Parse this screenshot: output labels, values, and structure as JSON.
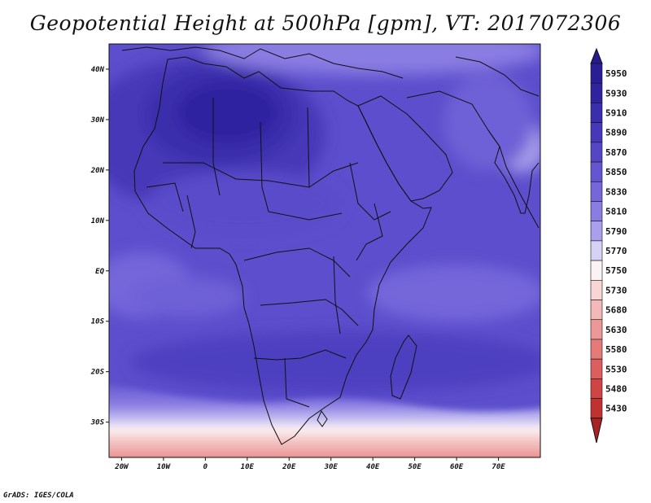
{
  "title": "Geopotential Height at 500hPa [gpm], VT: 2017072306",
  "footer": "GrADS: IGES/COLA",
  "map": {
    "projection": "latlon",
    "lon_range": [
      -23,
      80
    ],
    "lat_range": [
      -37,
      45
    ],
    "lon_ticks": [
      {
        "value": -20,
        "label": "20W"
      },
      {
        "value": -10,
        "label": "10W"
      },
      {
        "value": 0,
        "label": "0"
      },
      {
        "value": 10,
        "label": "10E"
      },
      {
        "value": 20,
        "label": "20E"
      },
      {
        "value": 30,
        "label": "30E"
      },
      {
        "value": 40,
        "label": "40E"
      },
      {
        "value": 50,
        "label": "50E"
      },
      {
        "value": 60,
        "label": "60E"
      },
      {
        "value": 70,
        "label": "70E"
      }
    ],
    "lat_ticks": [
      {
        "value": 40,
        "label": "40N"
      },
      {
        "value": 30,
        "label": "30N"
      },
      {
        "value": 20,
        "label": "20N"
      },
      {
        "value": 10,
        "label": "10N"
      },
      {
        "value": 0,
        "label": "EQ"
      },
      {
        "value": -10,
        "label": "10S"
      },
      {
        "value": -20,
        "label": "20S"
      },
      {
        "value": -30,
        "label": "30S"
      }
    ]
  },
  "colorbar": {
    "orientation": "vertical",
    "levels": [
      {
        "label": "5950",
        "color": "#2a1e96"
      },
      {
        "label": "5930",
        "color": "#2f23a0"
      },
      {
        "label": "5910",
        "color": "#3a2eac"
      },
      {
        "label": "5890",
        "color": "#4638b8"
      },
      {
        "label": "5870",
        "color": "#5446c4"
      },
      {
        "label": "5850",
        "color": "#6456d0"
      },
      {
        "label": "5830",
        "color": "#7566da"
      },
      {
        "label": "5810",
        "color": "#8a7de2"
      },
      {
        "label": "5790",
        "color": "#a99fea"
      },
      {
        "label": "5770",
        "color": "#d6d2f6"
      },
      {
        "label": "5750",
        "color": "#fbf3f3"
      },
      {
        "label": "5730",
        "color": "#f8d6d6"
      },
      {
        "label": "5680",
        "color": "#f3b8b8"
      },
      {
        "label": "5630",
        "color": "#ec9898"
      },
      {
        "label": "5580",
        "color": "#e47a7a"
      },
      {
        "label": "5530",
        "color": "#dc5e5e"
      },
      {
        "label": "5480",
        "color": "#cf4444"
      },
      {
        "label": "5430",
        "color": "#c03232"
      },
      {
        "label": "",
        "color": "#a82424"
      }
    ],
    "top_cap_color": "#261a8c"
  }
}
